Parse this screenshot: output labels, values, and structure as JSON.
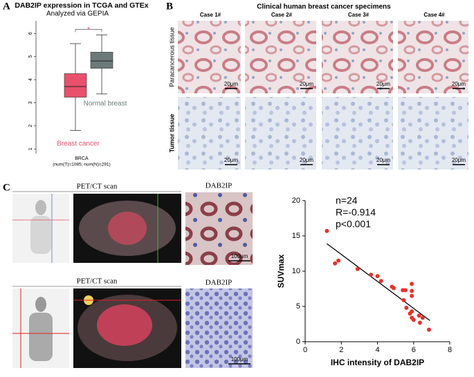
{
  "panel_labels": [
    "A",
    "B",
    "C"
  ],
  "panel_b": {
    "title": "Clinical human breast cancer specimens",
    "columns": [
      "Case 1#",
      "Case 2#",
      "Case 3#",
      "Case 4#"
    ],
    "rows": [
      "Paracancerous tissue",
      "Tumor tissue"
    ],
    "scale_bar": "20μm"
  },
  "panel_c": {
    "pet_label": "PET/CT scan",
    "ihc_label": "DAB2IP",
    "scale_bar": "100μm"
  },
  "chart_data": [
    {
      "type": "box",
      "title": "DAB2IP expression in TCGA and GTEx",
      "subtitle": "Analyzed via GEPIA",
      "xlabel": "BRCA",
      "note": "(num(T)=1085; num(N)=291)",
      "significance": "*",
      "ylim": [
        0.8,
        6.4
      ],
      "yticks": [
        1,
        2,
        3,
        4,
        5,
        6
      ],
      "boxes": [
        {
          "name": "Breast cancer",
          "color": "#e8506b",
          "whisker_low": 1.8,
          "q1": 3.24,
          "median": 3.7,
          "q3": 4.26,
          "whisker_high": 5.56
        },
        {
          "name": "Normal breast",
          "color": "#6b7a78",
          "whisker_low": 3.38,
          "q1": 4.49,
          "median": 4.81,
          "q3": 5.19,
          "whisker_high": 5.94
        }
      ]
    },
    {
      "type": "scatter",
      "xlabel": "IHC intensity of DAB2IP",
      "ylabel": "SUVmax",
      "annotations": [
        "n=24",
        "R=-0.914",
        "p<0.001"
      ],
      "xlim": [
        0,
        8
      ],
      "xticks": [
        0,
        2,
        4,
        6,
        8
      ],
      "ylim": [
        0,
        20
      ],
      "yticks": [
        0,
        5,
        10,
        15,
        20
      ],
      "color": "#e8322c",
      "x": [
        1.2,
        1.65,
        1.84,
        2.9,
        3.64,
        4.0,
        4.2,
        4.8,
        5.4,
        5.55,
        5.9,
        5.45,
        5.9,
        5.9,
        5.6,
        5.9,
        5.9,
        6.0,
        6.35,
        6.5,
        6.3,
        6.85,
        5.8,
        4.9
      ],
      "y": [
        15.7,
        11.1,
        11.5,
        10.3,
        9.5,
        9.3,
        8.6,
        7.8,
        7.3,
        7.3,
        8.2,
        5.9,
        6.5,
        7.2,
        4.8,
        4.3,
        3.4,
        3.1,
        2.7,
        3.4,
        3.7,
        1.7,
        4.0,
        7.6
      ],
      "trendline": {
        "x": [
          1.2,
          6.9
        ],
        "y": [
          13.9,
          3.0
        ]
      }
    }
  ]
}
